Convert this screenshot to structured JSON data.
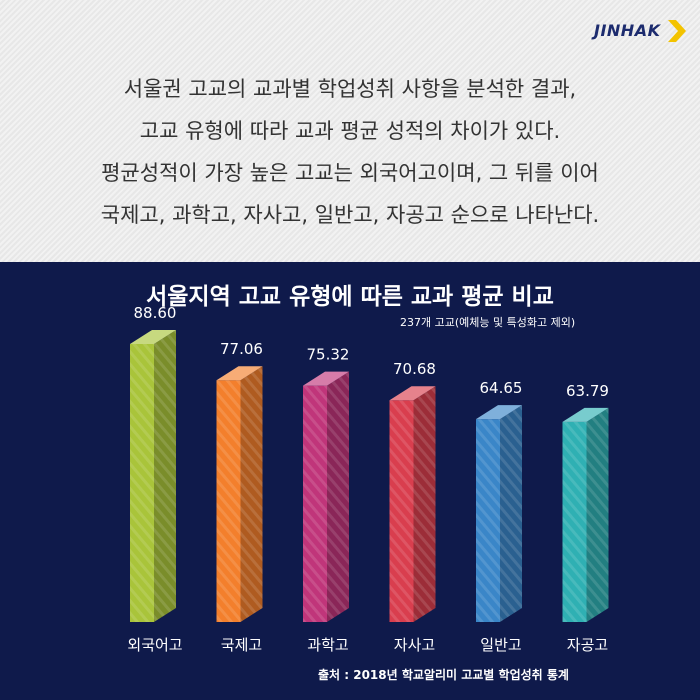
{
  "brand": {
    "logo_text": "JINHAK",
    "logo_color": "#1c2b6e",
    "arrow_color": "#f3c300"
  },
  "intro": {
    "lines": [
      "서울권 고교의 교과별 학업성취 사항을 분석한 결과,",
      "고교 유형에 따라 교과 평균 성적의 차이가 있다.",
      "평균성적이 가장 높은 고교는 외국어고이며, 그 뒤를 이어",
      "국제고, 과학고, 자사고, 일반고, 자공고 순으로 나타난다."
    ]
  },
  "chart_data": {
    "type": "bar",
    "title": "서울지역 고교 유형에 따른 교과 평균 비교",
    "subtitle": "237개 고교(예체능 및 특성화고 제외)",
    "categories": [
      "외국어고",
      "국제고",
      "과학고",
      "자사고",
      "일반고",
      "자공고"
    ],
    "values": [
      88.6,
      77.06,
      75.32,
      70.68,
      64.65,
      63.79
    ],
    "value_labels": [
      "88.60",
      "77.06",
      "75.32",
      "70.68",
      "64.65",
      "63.79"
    ],
    "colors": [
      "#a9c43a",
      "#f37f2c",
      "#c0357a",
      "#d93e4e",
      "#3a86c8",
      "#2fb0b3"
    ],
    "grid": false,
    "legend": "none"
  },
  "source": "출처 : 2018년 학교알리미  고교별 학업성취 통계",
  "background": {
    "top": "#ebebeb",
    "bottom": "#0f1a4b"
  }
}
